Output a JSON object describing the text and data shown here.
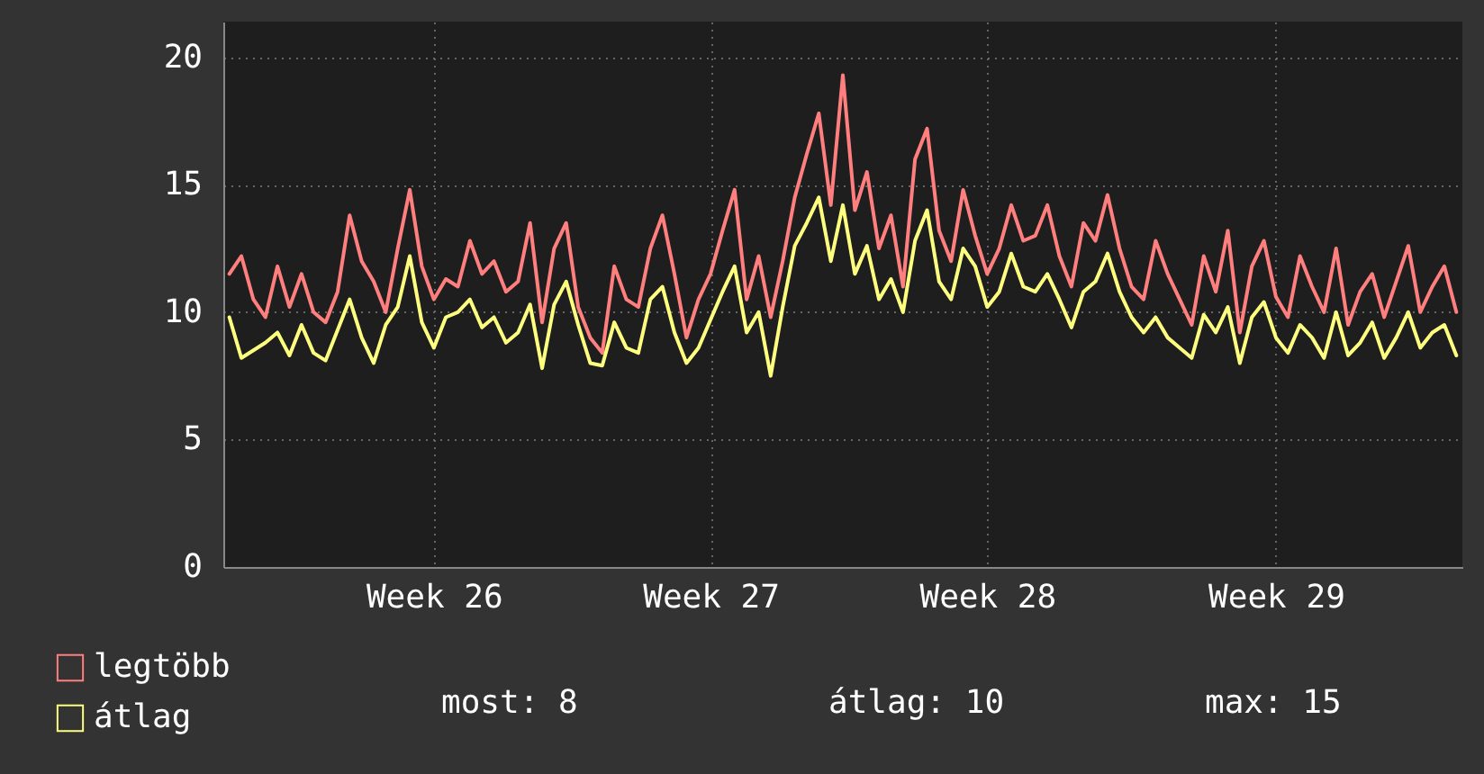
{
  "chart_data": {
    "type": "line",
    "categories": [
      null,
      null,
      null,
      null,
      null,
      null,
      null,
      null,
      null,
      null,
      null,
      null,
      null,
      null,
      null,
      null,
      null,
      "Week 26",
      null,
      null,
      null,
      null,
      null,
      null,
      null,
      null,
      null,
      null,
      null,
      null,
      null,
      null,
      null,
      null,
      null,
      null,
      null,
      null,
      null,
      null,
      "Week 27",
      null,
      null,
      null,
      null,
      null,
      null,
      null,
      null,
      null,
      null,
      null,
      null,
      null,
      null,
      null,
      null,
      null,
      null,
      null,
      null,
      null,
      null,
      "Week 28",
      null,
      null,
      null,
      null,
      null,
      null,
      null,
      null,
      null,
      null,
      null,
      null,
      null,
      null,
      null,
      null,
      null,
      null,
      null,
      null,
      null,
      null,
      null,
      "Week 29",
      null,
      null,
      null,
      null,
      null,
      null,
      null,
      null,
      null,
      null,
      null,
      null,
      null,
      null,
      null
    ],
    "series": [
      {
        "name": "legtöbb",
        "color": "#ff7f7f",
        "values": [
          11.5,
          12.2,
          10.5,
          9.8,
          11.8,
          10.2,
          11.5,
          10.0,
          9.6,
          10.8,
          13.8,
          12.0,
          11.2,
          10.0,
          12.5,
          14.8,
          11.8,
          10.5,
          11.3,
          11.0,
          12.8,
          11.5,
          12.0,
          10.8,
          11.2,
          13.5,
          9.6,
          12.5,
          13.5,
          10.2,
          9.0,
          8.4,
          11.8,
          10.5,
          10.2,
          12.5,
          13.8,
          11.5,
          9.0,
          10.5,
          11.5,
          13.2,
          14.8,
          10.5,
          12.2,
          9.8,
          12.0,
          14.5,
          16.2,
          17.8,
          14.2,
          19.3,
          14.0,
          15.5,
          12.5,
          13.8,
          11.0,
          16.0,
          17.2,
          13.2,
          12.0,
          14.8,
          13.0,
          11.5,
          12.5,
          14.2,
          12.8,
          13.0,
          14.2,
          12.2,
          11.0,
          13.5,
          12.8,
          14.6,
          12.5,
          11.0,
          10.5,
          12.8,
          11.5,
          10.5,
          9.5,
          12.2,
          10.8,
          13.2,
          9.2,
          11.8,
          12.8,
          10.6,
          9.8,
          12.2,
          11.0,
          10.0,
          12.5,
          9.5,
          10.8,
          11.5,
          9.8,
          11.2,
          12.6,
          10.0,
          11.0,
          11.8,
          10.0
        ]
      },
      {
        "name": "átlag",
        "color": "#ffff7f",
        "values": [
          9.8,
          8.2,
          8.5,
          8.8,
          9.2,
          8.3,
          9.5,
          8.4,
          8.1,
          9.3,
          10.5,
          9.0,
          8.0,
          9.5,
          10.2,
          12.2,
          9.6,
          8.6,
          9.8,
          10.0,
          10.5,
          9.4,
          9.8,
          8.8,
          9.2,
          10.3,
          7.8,
          10.3,
          11.2,
          9.5,
          8.0,
          7.9,
          9.6,
          8.6,
          8.4,
          10.5,
          11.0,
          9.2,
          8.0,
          8.6,
          9.7,
          10.8,
          11.8,
          9.2,
          10.0,
          7.5,
          10.2,
          12.6,
          13.5,
          14.5,
          12.0,
          14.2,
          11.5,
          12.6,
          10.5,
          11.3,
          10.0,
          12.8,
          14.0,
          11.2,
          10.5,
          12.5,
          11.8,
          10.2,
          10.8,
          12.3,
          11.0,
          10.8,
          11.5,
          10.5,
          9.4,
          10.8,
          11.2,
          12.3,
          10.8,
          9.8,
          9.2,
          9.8,
          9.0,
          8.6,
          8.2,
          9.9,
          9.2,
          10.2,
          8.0,
          9.8,
          10.4,
          9.0,
          8.4,
          9.5,
          9.0,
          8.2,
          10.0,
          8.3,
          8.8,
          9.6,
          8.2,
          9.0,
          10.0,
          8.6,
          9.2,
          9.5,
          8.3
        ]
      }
    ],
    "ylim": [
      0,
      21.4
    ],
    "yticks": [
      0,
      5,
      10,
      15,
      20
    ],
    "grid": true,
    "legend": "bottom",
    "annotations": [
      "most: 8",
      "átlag: 10",
      "max: 15"
    ]
  }
}
